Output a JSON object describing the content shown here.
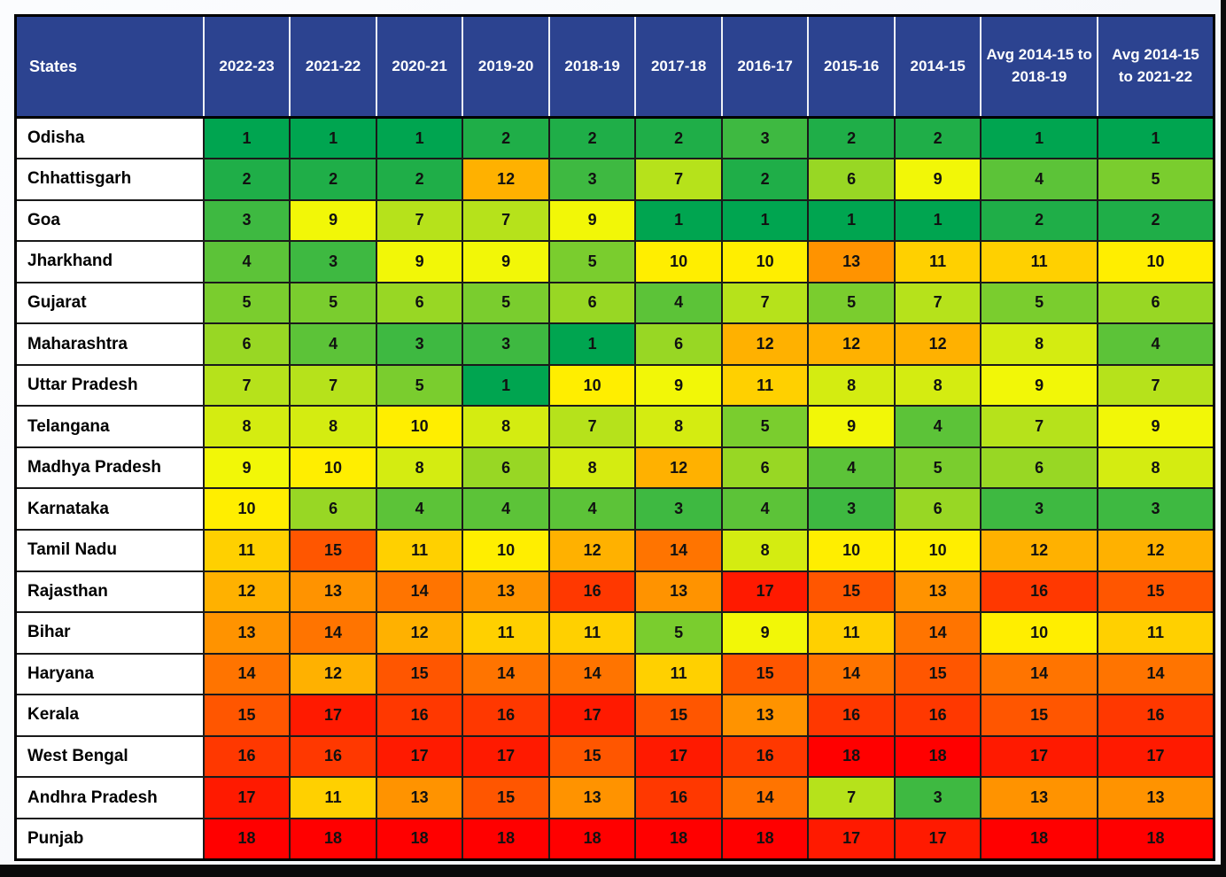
{
  "page": {
    "background": "#FBFCFE",
    "frame_color": "#0A0A0A"
  },
  "colors": {
    "header_bg": "#2C4390",
    "header_text": "#FFFFFF",
    "cell_text": "#111111",
    "grid": "#1A1A1A",
    "state_cell_bg": "#FFFFFF",
    "scale": {
      "1": "#00A550",
      "2": "#1FAE48",
      "3": "#3EB941",
      "4": "#5CC338",
      "5": "#7ACD2E",
      "6": "#98D724",
      "7": "#B6E21B",
      "8": "#D4EC11",
      "9": "#F2F707",
      "10": "#FFEE00",
      "11": "#FFD000",
      "12": "#FFB100",
      "13": "#FF9300",
      "14": "#FF7400",
      "15": "#FF5600",
      "16": "#FF3800",
      "17": "#FF1A00",
      "18": "#FF0000"
    }
  },
  "chart_data": {
    "type": "heatmap",
    "row_header": "States",
    "columns": [
      "2022-23",
      "2021-22",
      "2020-21",
      "2019-20",
      "2018-19",
      "2017-18",
      "2016-17",
      "2015-16",
      "2014-15",
      "Avg 2014-15 to 2018-19",
      "Avg 2014-15 to 2021-22"
    ],
    "value_range": [
      1,
      18
    ],
    "legend": "off",
    "rows": [
      {
        "state": "Odisha",
        "values": [
          1,
          1,
          1,
          2,
          2,
          2,
          3,
          2,
          2,
          1,
          1
        ]
      },
      {
        "state": "Chhattisgarh",
        "values": [
          2,
          2,
          2,
          12,
          3,
          7,
          2,
          6,
          9,
          4,
          5
        ]
      },
      {
        "state": "Goa",
        "values": [
          3,
          9,
          7,
          7,
          9,
          1,
          1,
          1,
          1,
          2,
          2
        ]
      },
      {
        "state": "Jharkhand",
        "values": [
          4,
          3,
          9,
          9,
          5,
          10,
          10,
          13,
          11,
          11,
          10
        ]
      },
      {
        "state": "Gujarat",
        "values": [
          5,
          5,
          6,
          5,
          6,
          4,
          7,
          5,
          7,
          5,
          6
        ]
      },
      {
        "state": "Maharashtra",
        "values": [
          6,
          4,
          3,
          3,
          1,
          6,
          12,
          12,
          12,
          8,
          4
        ]
      },
      {
        "state": "Uttar Pradesh",
        "values": [
          7,
          7,
          5,
          1,
          10,
          9,
          11,
          8,
          8,
          9,
          7
        ]
      },
      {
        "state": "Telangana",
        "values": [
          8,
          8,
          10,
          8,
          7,
          8,
          5,
          9,
          4,
          7,
          9
        ]
      },
      {
        "state": "Madhya Pradesh",
        "values": [
          9,
          10,
          8,
          6,
          8,
          12,
          6,
          4,
          5,
          6,
          8
        ]
      },
      {
        "state": "Karnataka",
        "values": [
          10,
          6,
          4,
          4,
          4,
          3,
          4,
          3,
          6,
          3,
          3
        ]
      },
      {
        "state": "Tamil Nadu",
        "values": [
          11,
          15,
          11,
          10,
          12,
          14,
          8,
          10,
          10,
          12,
          12
        ]
      },
      {
        "state": "Rajasthan",
        "values": [
          12,
          13,
          14,
          13,
          16,
          13,
          17,
          15,
          13,
          16,
          15
        ]
      },
      {
        "state": "Bihar",
        "values": [
          13,
          14,
          12,
          11,
          11,
          5,
          9,
          11,
          14,
          10,
          11
        ]
      },
      {
        "state": "Haryana",
        "values": [
          14,
          12,
          15,
          14,
          14,
          11,
          15,
          14,
          15,
          14,
          14
        ]
      },
      {
        "state": "Kerala",
        "values": [
          15,
          17,
          16,
          16,
          17,
          15,
          13,
          16,
          16,
          15,
          16
        ]
      },
      {
        "state": "West Bengal",
        "values": [
          16,
          16,
          17,
          17,
          15,
          17,
          16,
          18,
          18,
          17,
          17
        ]
      },
      {
        "state": "Andhra Pradesh",
        "values": [
          17,
          11,
          13,
          15,
          13,
          16,
          14,
          7,
          3,
          13,
          13
        ]
      },
      {
        "state": "Punjab",
        "values": [
          18,
          18,
          18,
          18,
          18,
          18,
          18,
          17,
          17,
          18,
          18
        ]
      }
    ]
  }
}
